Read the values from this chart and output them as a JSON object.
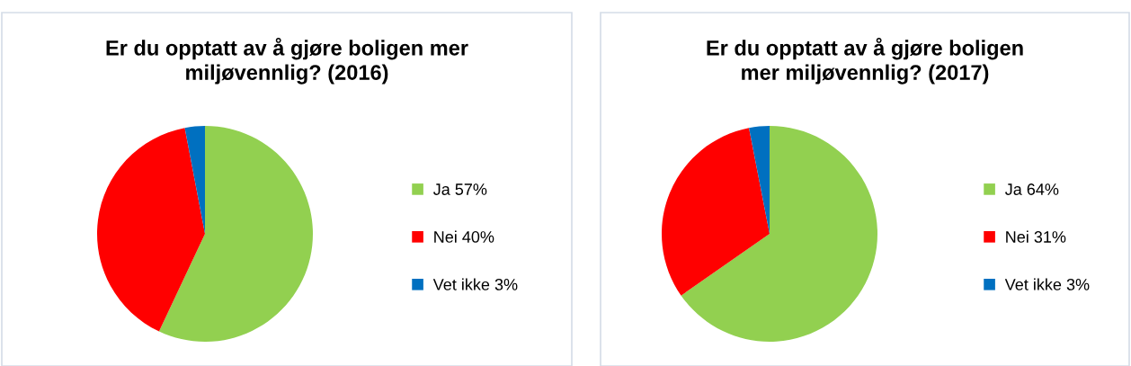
{
  "chart_data": [
    {
      "type": "pie",
      "title": "Er du opptatt av å gjøre boligen mer\nmiljøvennlig? (2016)",
      "categories": [
        "Ja 57%",
        "Nei 40%",
        "Vet ikke 3%"
      ],
      "values": [
        57,
        40,
        3
      ],
      "colors": [
        "#92d050",
        "#ff0000",
        "#0070c0"
      ],
      "legend": "right"
    },
    {
      "type": "pie",
      "title": "Er du opptatt av å gjøre boligen\nmer miljøvennlig? (2017)",
      "categories": [
        "Ja 64%",
        "Nei 31%",
        "Vet ikke 3%"
      ],
      "values": [
        64,
        31,
        3
      ],
      "colors": [
        "#92d050",
        "#ff0000",
        "#0070c0"
      ],
      "legend": "right"
    }
  ]
}
